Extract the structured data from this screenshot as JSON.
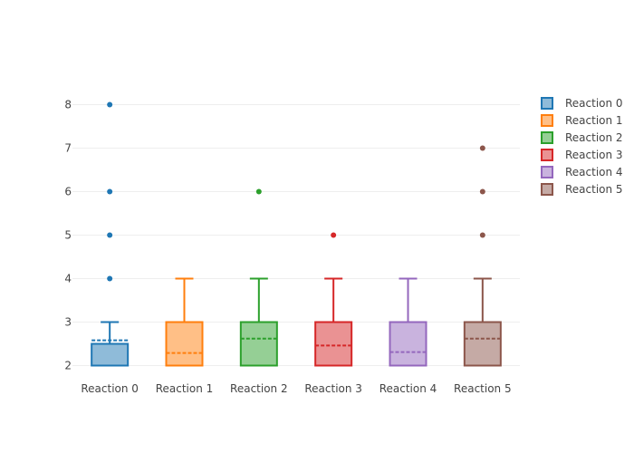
{
  "chart_data": {
    "type": "box",
    "title": "",
    "xlabel": "",
    "ylabel": "",
    "ylim": [
      1.75,
      8.25
    ],
    "yticks": [
      2,
      3,
      4,
      5,
      6,
      7,
      8
    ],
    "grid": true,
    "legend_position": "right",
    "categories": [
      "Reaction 0",
      "Reaction 1",
      "Reaction 2",
      "Reaction 3",
      "Reaction 4",
      "Reaction 5"
    ],
    "series": [
      {
        "name": "Reaction 0",
        "color": "#1f77b4",
        "fill": "#8fbbd9",
        "q1": 2,
        "median": 2,
        "q3": 2.5,
        "lower_whisker": 2,
        "upper_whisker": 3,
        "mean": 2.58,
        "outliers": [
          4,
          5,
          6,
          8
        ]
      },
      {
        "name": "Reaction 1",
        "color": "#ff7f0e",
        "fill": "#ffbf86",
        "q1": 2,
        "median": 2,
        "q3": 3,
        "lower_whisker": 2,
        "upper_whisker": 4,
        "mean": 2.29,
        "outliers": []
      },
      {
        "name": "Reaction 2",
        "color": "#2ca02c",
        "fill": "#95cf95",
        "q1": 2,
        "median": 2,
        "q3": 3,
        "lower_whisker": 2,
        "upper_whisker": 4,
        "mean": 2.62,
        "outliers": [
          6
        ]
      },
      {
        "name": "Reaction 3",
        "color": "#d62728",
        "fill": "#ea9293",
        "q1": 2,
        "median": 2,
        "q3": 3,
        "lower_whisker": 2,
        "upper_whisker": 4,
        "mean": 2.46,
        "outliers": [
          5
        ]
      },
      {
        "name": "Reaction 4",
        "color": "#9467bd",
        "fill": "#c9b3de",
        "q1": 2,
        "median": 2,
        "q3": 3,
        "lower_whisker": 2,
        "upper_whisker": 4,
        "mean": 2.31,
        "outliers": []
      },
      {
        "name": "Reaction 5",
        "color": "#8c564b",
        "fill": "#c5aaa5",
        "q1": 2,
        "median": 2,
        "q3": 3,
        "lower_whisker": 2,
        "upper_whisker": 4,
        "mean": 2.62,
        "outliers": [
          5,
          6,
          7
        ]
      }
    ]
  }
}
